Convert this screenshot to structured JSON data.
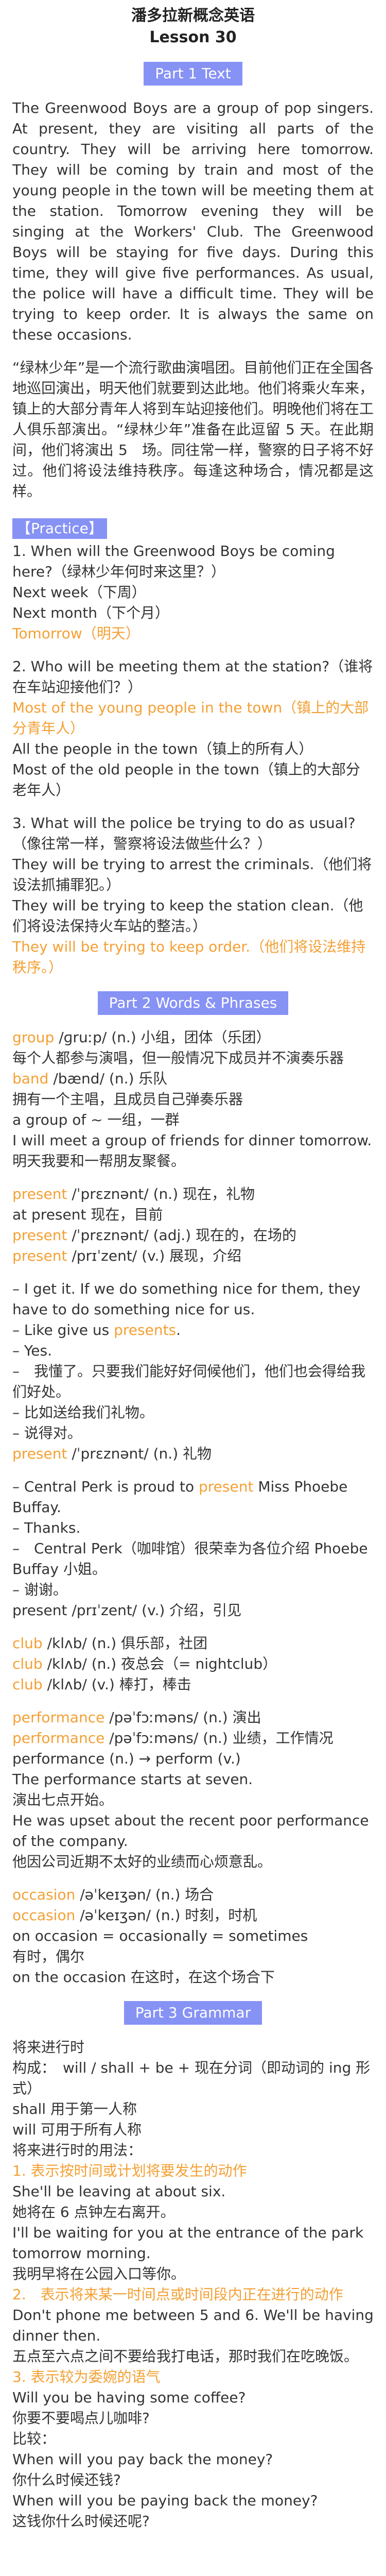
{
  "header": {
    "title": "潘多拉新概念英语",
    "subtitle": "Lesson 30"
  },
  "sections": [
    {
      "type": "section_title",
      "text": "Part 1 Text"
    },
    {
      "type": "para",
      "text": "The Greenwood Boys are a group of pop singers. At present, they are visiting all parts of the country. They will be arriving here tomorrow. They will be coming by train and most of the young people in the town will be meeting them at the station. Tomorrow evening they will be singing at the Workers' Club. The Greenwood Boys will be staying for five days. During this time, they will give five performances. As usual, the police will have a difficult time. They will be trying to keep order. It is always the same on these occasions."
    },
    {
      "type": "para",
      "text": "“绿林少年”是一个流行歌曲演唱团。目前他们正在全国各地巡回演出，明天他们就要到达此地。他们将乘火车来，镇上的大部分青年人将到车站迎接他们。明晚他们将在工人俱乐部演出。“绿林少年”准备在此逗留 5 天。在此期间，他们将演出 5　场。同往常一样，警察的日子将不好过。他们将设法维持秩序。每逢这种场合，情况都是这样。"
    },
    {
      "type": "tag",
      "text": "【Practice】"
    },
    {
      "type": "block",
      "lines": [
        {
          "text": "1. When will the Greenwood Boys be coming here?（绿林少年何时来这里？）",
          "hl": false
        },
        {
          "text": "Next week（下周）",
          "hl": false
        },
        {
          "text": "Next month（下个月）",
          "hl": false
        },
        {
          "text": "Tomorrow（明天）",
          "hl": true
        }
      ]
    },
    {
      "type": "block",
      "lines": [
        {
          "text": "2. Who will be meeting them at the station?（谁将在车站迎接他们？）",
          "hl": false
        },
        {
          "text": "Most of the young people in the town（镇上的大部分青年人）",
          "hl": true
        },
        {
          "text": "All the people in the town（镇上的所有人）",
          "hl": false
        },
        {
          "text": "Most of the old people in the town（镇上的大部分老年人）",
          "hl": false
        }
      ]
    },
    {
      "type": "block",
      "lines": [
        {
          "text": "3. What will the police be trying to do as usual?（像往常一样，警察将设法做些什么？）",
          "hl": false
        },
        {
          "text": "They will be trying to arrest the criminals.（他们将设法抓捕罪犯。）",
          "hl": false
        },
        {
          "text": "They will be trying to keep the station clean.（他们将设法保持火车站的整洁。）",
          "hl": false
        },
        {
          "text": "They will be trying to keep order.（他们将设法维持秩序。）",
          "hl": true
        }
      ]
    },
    {
      "type": "section_title",
      "text": "Part 2 Words & Phrases"
    },
    {
      "type": "block",
      "lines": [
        {
          "segs": [
            {
              "t": "group",
              "hl": true
            },
            {
              "t": " /ɡruːp/ (n.) 小组，团体（乐团）",
              "hl": false
            }
          ]
        },
        {
          "text": "每个人都参与演唱，但一般情况下成员并不演奏乐器",
          "hl": false
        },
        {
          "segs": [
            {
              "t": "band",
              "hl": true
            },
            {
              "t": " /bænd/ (n.) 乐队",
              "hl": false
            }
          ]
        },
        {
          "text": "拥有一个主唱，且成员自己弹奏乐器",
          "hl": false
        },
        {
          "text": "a group of ~ 一组，一群",
          "hl": false
        },
        {
          "text": "I will meet a group of friends for dinner tomorrow.",
          "hl": false
        },
        {
          "text": "明天我要和一帮朋友聚餐。",
          "hl": false
        }
      ]
    },
    {
      "type": "block",
      "lines": [
        {
          "segs": [
            {
              "t": "present",
              "hl": true
            },
            {
              "t": " /ˈprɛznənt/ (n.) 现在，礼物",
              "hl": false
            }
          ]
        },
        {
          "text": "at present 现在，目前",
          "hl": false
        },
        {
          "segs": [
            {
              "t": "present",
              "hl": true
            },
            {
              "t": " /ˈprɛznənt/ (adj.) 现在的，在场的",
              "hl": false
            }
          ]
        },
        {
          "segs": [
            {
              "t": "present",
              "hl": true
            },
            {
              "t": " /prɪˈzent/ (v.) 展现，介绍",
              "hl": false
            }
          ]
        },
        {
          "text": "",
          "hl": false
        },
        {
          "text": "– I get it. If we do something nice for them, they have to do something nice for us.",
          "hl": false
        },
        {
          "segs": [
            {
              "t": "– Like give us ",
              "hl": false
            },
            {
              "t": "presents",
              "hl": true
            },
            {
              "t": ".",
              "hl": false
            }
          ]
        },
        {
          "text": "– Yes.",
          "hl": false
        },
        {
          "text": "–　我懂了。只要我们能好好伺候他们，他们也会得给我们好处。",
          "hl": false
        },
        {
          "text": "– 比如送给我们礼物。",
          "hl": false
        },
        {
          "text": "– 说得对。",
          "hl": false
        },
        {
          "segs": [
            {
              "t": "present",
              "hl": true
            },
            {
              "t": " /ˈprɛznənt/ (n.) 礼物",
              "hl": false
            }
          ]
        },
        {
          "text": "",
          "hl": false
        },
        {
          "segs": [
            {
              "t": "– Central Perk is proud to ",
              "hl": false
            },
            {
              "t": "present",
              "hl": true
            },
            {
              "t": " Miss Phoebe Buffay.",
              "hl": false
            }
          ]
        },
        {
          "text": "– Thanks.",
          "hl": false
        },
        {
          "text": "–　Central Perk（咖啡馆）很荣幸为各位介绍 Phoebe Buffay 小姐。",
          "hl": false
        },
        {
          "text": "– 谢谢。",
          "hl": false
        },
        {
          "text": "present /prɪˈzent/ (v.) 介绍，引见",
          "hl": false
        }
      ]
    },
    {
      "type": "block",
      "lines": [
        {
          "segs": [
            {
              "t": "club",
              "hl": true
            },
            {
              "t": " /klʌb/ (n.) 俱乐部，社团",
              "hl": false
            }
          ]
        },
        {
          "segs": [
            {
              "t": "club",
              "hl": true
            },
            {
              "t": " /klʌb/ (n.) 夜总会（= nightclub）",
              "hl": false
            }
          ]
        },
        {
          "segs": [
            {
              "t": "club",
              "hl": true
            },
            {
              "t": " /klʌb/ (v.) 棒打，棒击",
              "hl": false
            }
          ]
        }
      ]
    },
    {
      "type": "block",
      "lines": [
        {
          "segs": [
            {
              "t": "performance",
              "hl": true
            },
            {
              "t": " /pəˈfɔːməns/ (n.) 演出",
              "hl": false
            }
          ]
        },
        {
          "segs": [
            {
              "t": "performance",
              "hl": true
            },
            {
              "t": " /pəˈfɔːməns/ (n.) 业绩，工作情况",
              "hl": false
            }
          ]
        },
        {
          "text": "performance (n.) → perform (v.)",
          "hl": false
        },
        {
          "text": "The performance starts at seven.",
          "hl": false
        },
        {
          "text": "演出七点开始。",
          "hl": false
        },
        {
          "text": "He was upset about the recent poor performance of the company.",
          "hl": false
        },
        {
          "text": "他因公司近期不太好的业绩而心烦意乱。",
          "hl": false
        }
      ]
    },
    {
      "type": "block",
      "lines": [
        {
          "segs": [
            {
              "t": "occasion",
              "hl": true
            },
            {
              "t": " /əˈkeɪʒən/ (n.) 场合",
              "hl": false
            }
          ]
        },
        {
          "segs": [
            {
              "t": "occasion",
              "hl": true
            },
            {
              "t": " /əˈkeɪʒən/ (n.) 时刻，时机",
              "hl": false
            }
          ]
        },
        {
          "text": "on occasion = occasionally = sometimes",
          "hl": false
        },
        {
          "text": "有时，偶尔",
          "hl": false
        },
        {
          "text": "on the occasion 在这时，在这个场合下",
          "hl": false
        }
      ]
    },
    {
      "type": "section_title",
      "text": "Part 3 Grammar"
    },
    {
      "type": "block",
      "lines": [
        {
          "text": "将来进行时",
          "hl": false
        },
        {
          "text": "构成：　will / shall + be + 现在分词（即动词的 ing 形式）",
          "hl": false
        },
        {
          "text": "shall 用于第一人称",
          "hl": false
        },
        {
          "text": "will 可用于所有人称",
          "hl": false
        },
        {
          "text": "将来进行时的用法：",
          "hl": false
        },
        {
          "text": "1. 表示按时间或计划将要发生的动作",
          "hl": true
        },
        {
          "text": "She'll be leaving at about six.",
          "hl": false
        },
        {
          "text": "她将在 6 点钟左右离开。",
          "hl": false
        },
        {
          "text": "I'll be waiting for you at the entrance of the park tomorrow morning.",
          "hl": false
        },
        {
          "text": "我明早将在公园入口等你。",
          "hl": false
        },
        {
          "text": "2.　表示将来某一时间点或时间段内正在进行的动作",
          "hl": true
        },
        {
          "text": "Don't phone me between 5 and 6. We'll be having dinner then.",
          "hl": false
        },
        {
          "text": "五点至六点之间不要给我打电话，那时我们在吃晚饭。",
          "hl": false
        },
        {
          "text": "3. 表示较为委婉的语气",
          "hl": true
        },
        {
          "text": "Will you be having some coffee?",
          "hl": false
        },
        {
          "text": "你要不要喝点儿咖啡?",
          "hl": false
        },
        {
          "text": "比较：",
          "hl": false
        },
        {
          "text": "When will you pay back the money?",
          "hl": false
        },
        {
          "text": "你什么时候还钱?",
          "hl": false
        },
        {
          "text": "When will you be paying back the money?",
          "hl": false
        },
        {
          "text": "这钱你什么时候还呢?",
          "hl": false
        }
      ]
    }
  ],
  "colors": {
    "accent": "#8792f5",
    "highlight": "#f4a034",
    "text": "#333333"
  }
}
